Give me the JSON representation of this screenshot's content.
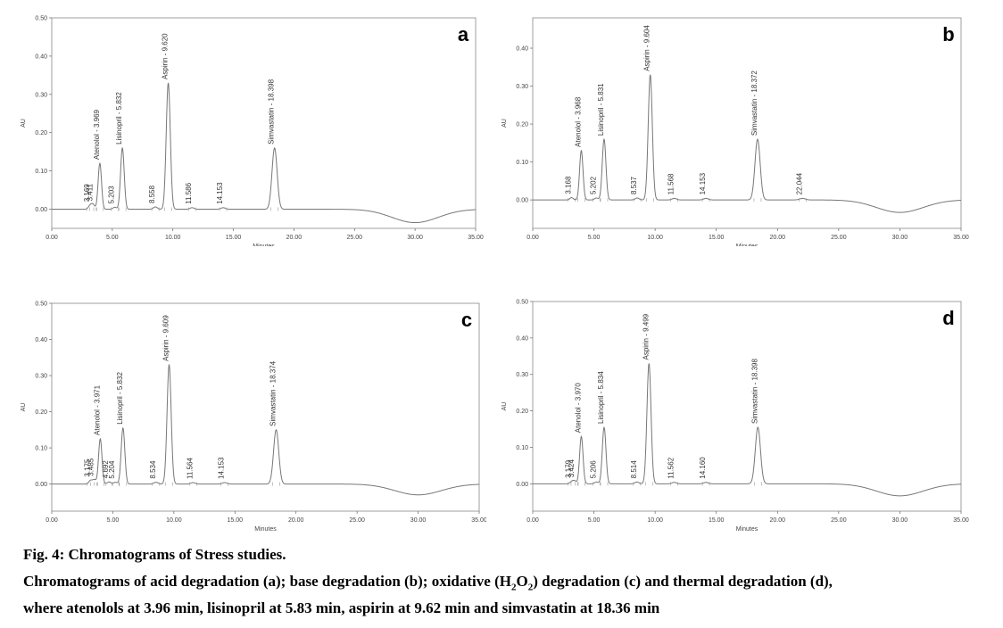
{
  "caption": {
    "title": "Fig. 4: Chromatograms of Stress studies.",
    "line1_a": "Chromatograms of acid degradation (a); base degradation (b); oxidative (H",
    "sub1": "2",
    "line1_b": "O",
    "sub2": "2",
    "line1_c": ") degradation (c) and thermal degradation (d),",
    "line2": "where atenolols at 3.96 min, lisinopril at 5.83 min, aspirin at 9.62 min and simvastatin at 18.36 min"
  },
  "chart_data": [
    {
      "type": "line",
      "panel": "a",
      "xlabel": "Minutes",
      "ylabel": "AU",
      "xlim": [
        0,
        35
      ],
      "ylim": [
        -0.05,
        0.5
      ],
      "xticks": [
        "0.00",
        "5.00",
        "10.00",
        "15.00",
        "20.00",
        "25.00",
        "30.00",
        "35.00"
      ],
      "yticks": [
        "0.00",
        "0.10",
        "0.20",
        "0.30",
        "0.40",
        "0.50"
      ],
      "peaks": [
        {
          "label": "3.169",
          "rt": 3.169,
          "height": 0.01
        },
        {
          "label": "3.411",
          "rt": 3.411,
          "height": 0.012
        },
        {
          "label": "Atenolol - 3.969",
          "rt": 3.969,
          "height": 0.12
        },
        {
          "label": "5.203",
          "rt": 5.203,
          "height": 0.005
        },
        {
          "label": "Lisinopril - 5.832",
          "rt": 5.832,
          "height": 0.16
        },
        {
          "label": "8.558",
          "rt": 8.558,
          "height": 0.006
        },
        {
          "label": "Aspirin - 9.620",
          "rt": 9.62,
          "height": 0.33
        },
        {
          "label": "11.586",
          "rt": 11.586,
          "height": 0.004
        },
        {
          "label": "14.153",
          "rt": 14.153,
          "height": 0.004
        },
        {
          "label": "Simvastatin - 18.398",
          "rt": 18.398,
          "height": 0.16
        }
      ],
      "dip": {
        "center": 30,
        "depth": -0.035
      }
    },
    {
      "type": "line",
      "panel": "b",
      "xlabel": "Minutes",
      "ylabel": "AU",
      "xlim": [
        0,
        35
      ],
      "ylim": [
        -0.075,
        0.48
      ],
      "xticks": [
        "0.00",
        "5.00",
        "10.00",
        "15.00",
        "20.00",
        "25.00",
        "30.00",
        "35.00"
      ],
      "yticks": [
        "0.00",
        "0.10",
        "0.20",
        "0.30",
        "0.40"
      ],
      "peaks": [
        {
          "label": "3.168",
          "rt": 3.168,
          "height": 0.006
        },
        {
          "label": "Atenolol - 3.968",
          "rt": 3.968,
          "height": 0.13
        },
        {
          "label": "5.202",
          "rt": 5.202,
          "height": 0.005
        },
        {
          "label": "Lisinopril - 5.831",
          "rt": 5.831,
          "height": 0.16
        },
        {
          "label": "8.537",
          "rt": 8.537,
          "height": 0.005
        },
        {
          "label": "Aspirin - 9.604",
          "rt": 9.604,
          "height": 0.33
        },
        {
          "label": "11.568",
          "rt": 11.568,
          "height": 0.004
        },
        {
          "label": "14.153",
          "rt": 14.153,
          "height": 0.004
        },
        {
          "label": "Simvastatin - 18.372",
          "rt": 18.372,
          "height": 0.16
        },
        {
          "label": "22.044",
          "rt": 22.044,
          "height": 0.004
        }
      ],
      "dip": {
        "center": 30,
        "depth": -0.033
      }
    },
    {
      "type": "line",
      "panel": "c",
      "xlabel": "Minutes",
      "ylabel": "AU",
      "xlim": [
        0,
        35
      ],
      "ylim": [
        -0.075,
        0.5
      ],
      "xticks": [
        "0.00",
        "5.00",
        "10.00",
        "15.00",
        "20.00",
        "25.00",
        "30.00",
        "35.00"
      ],
      "yticks": [
        "0.00",
        "0.10",
        "0.20",
        "0.30",
        "0.40",
        "0.50"
      ],
      "peaks": [
        {
          "label": "3.175",
          "rt": 3.175,
          "height": 0.01
        },
        {
          "label": "3.485",
          "rt": 3.485,
          "height": 0.012
        },
        {
          "label": "Atenolol - 3.971",
          "rt": 3.971,
          "height": 0.125
        },
        {
          "label": "4.692",
          "rt": 4.692,
          "height": 0.006
        },
        {
          "label": "5.204",
          "rt": 5.204,
          "height": 0.005
        },
        {
          "label": "Lisinopril - 5.832",
          "rt": 5.832,
          "height": 0.155
        },
        {
          "label": "8.534",
          "rt": 8.534,
          "height": 0.005
        },
        {
          "label": "Aspirin - 9.609",
          "rt": 9.609,
          "height": 0.33
        },
        {
          "label": "11.564",
          "rt": 11.564,
          "height": 0.004
        },
        {
          "label": "14.153",
          "rt": 14.153,
          "height": 0.004
        },
        {
          "label": "Simvastatin - 18.374",
          "rt": 18.374,
          "height": 0.15
        }
      ],
      "dip": {
        "center": 30,
        "depth": -0.03
      }
    },
    {
      "type": "line",
      "panel": "d",
      "xlabel": "Minutes",
      "ylabel": "AU",
      "xlim": [
        0,
        35
      ],
      "ylim": [
        -0.075,
        0.5
      ],
      "xticks": [
        "0.00",
        "5.00",
        "10.00",
        "15.00",
        "20.00",
        "25.00",
        "30.00",
        "35.00"
      ],
      "yticks": [
        "0.00",
        "0.10",
        "0.20",
        "0.30",
        "0.40",
        "0.50"
      ],
      "peaks": [
        {
          "label": "3.179",
          "rt": 3.179,
          "height": 0.006
        },
        {
          "label": "3.424",
          "rt": 3.424,
          "height": 0.008
        },
        {
          "label": "Atenolol - 3.970",
          "rt": 3.97,
          "height": 0.13
        },
        {
          "label": "5.206",
          "rt": 5.206,
          "height": 0.005
        },
        {
          "label": "Lisinopril - 5.834",
          "rt": 5.834,
          "height": 0.155
        },
        {
          "label": "8.514",
          "rt": 8.514,
          "height": 0.005
        },
        {
          "label": "Aspirin - 9.499",
          "rt": 9.499,
          "height": 0.33
        },
        {
          "label": "11.562",
          "rt": 11.562,
          "height": 0.004
        },
        {
          "label": "14.160",
          "rt": 14.16,
          "height": 0.004
        },
        {
          "label": "Simvastatin - 18.398",
          "rt": 18.398,
          "height": 0.155
        }
      ],
      "dip": {
        "center": 30,
        "depth": -0.033
      }
    }
  ]
}
